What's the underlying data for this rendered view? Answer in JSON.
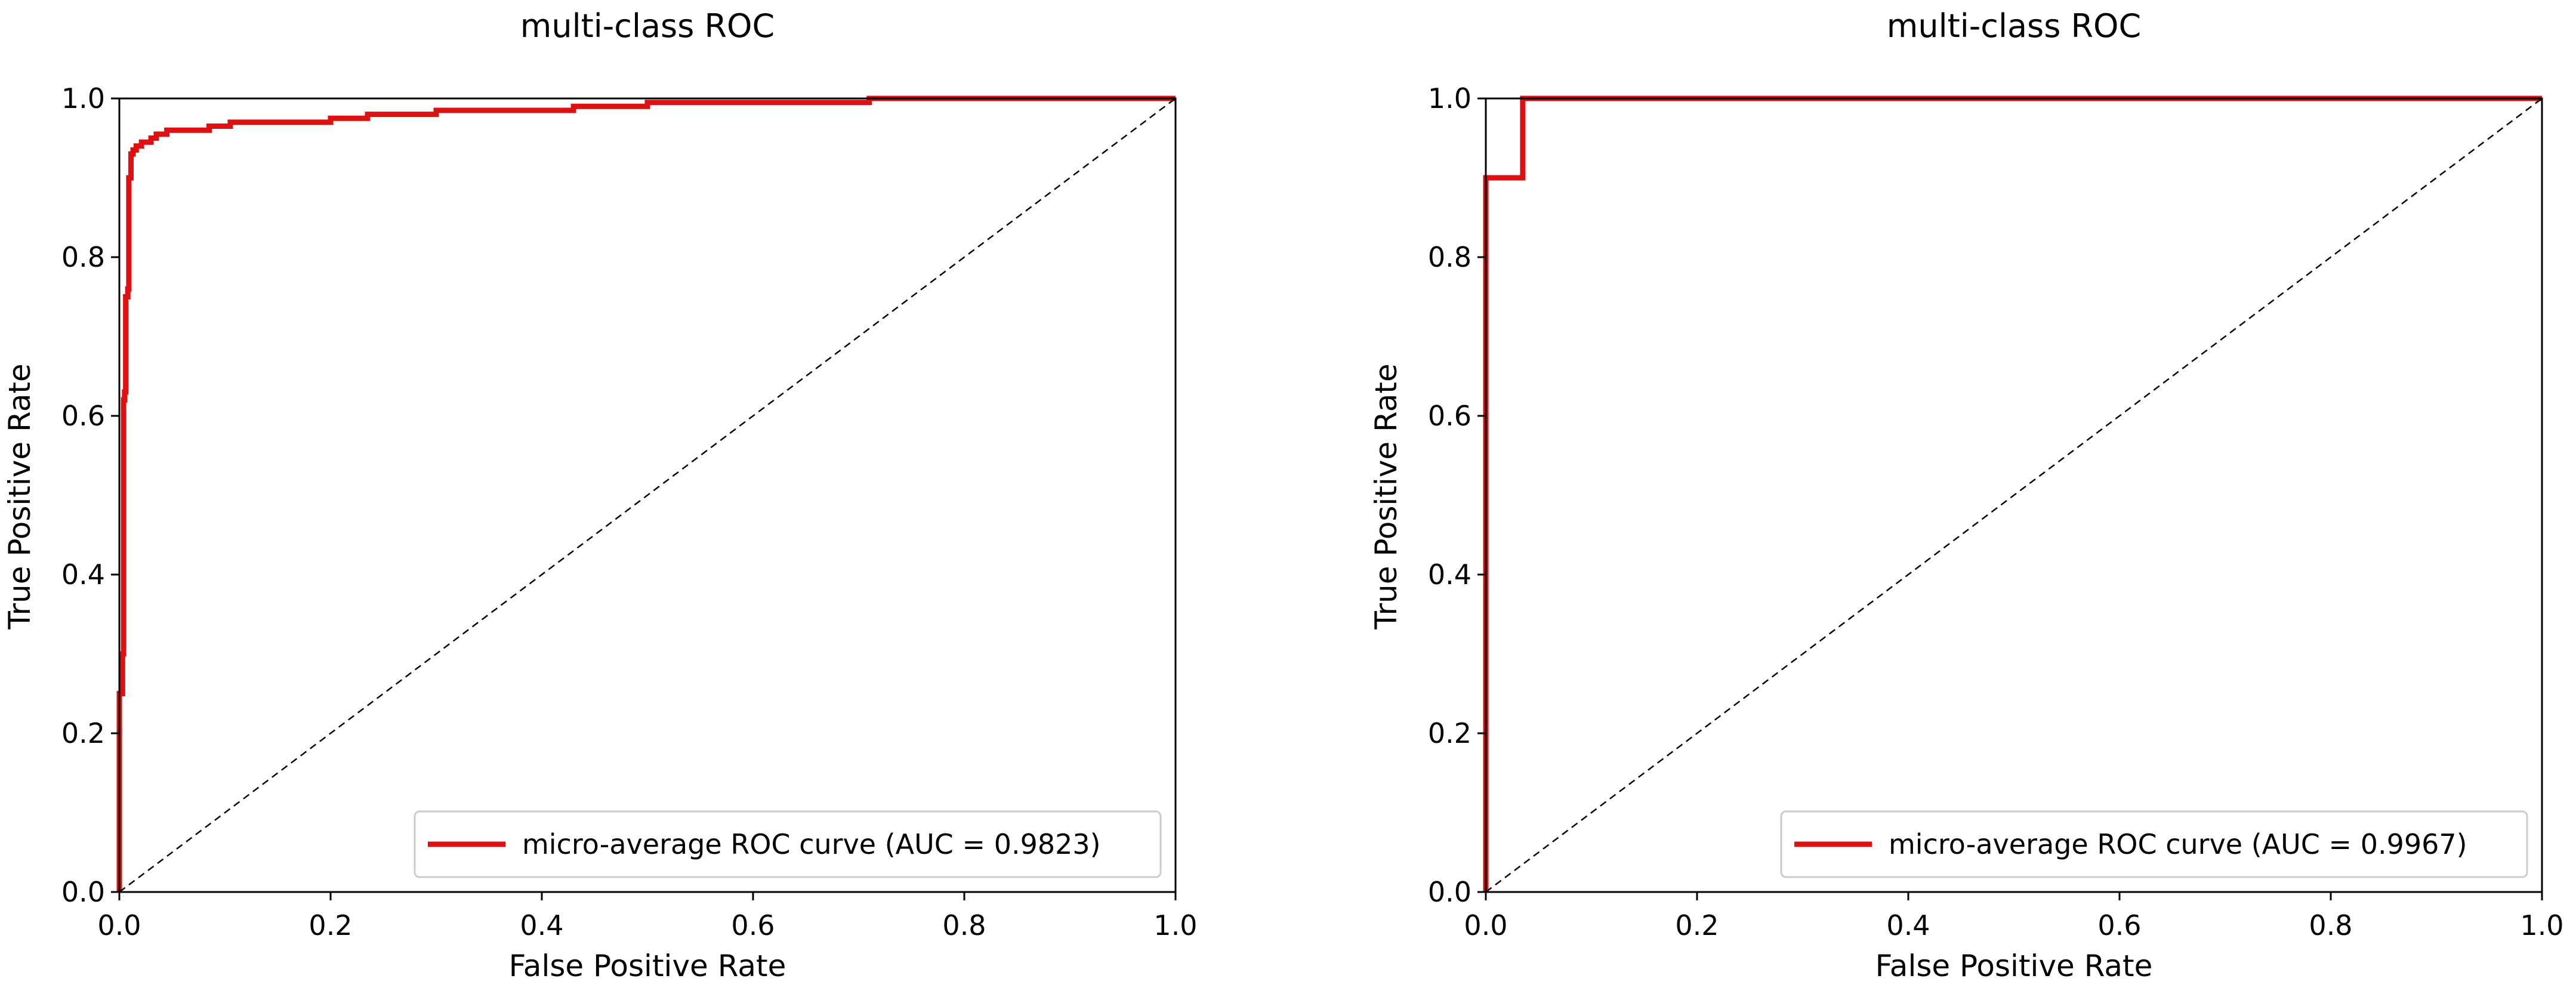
{
  "colors": {
    "curve": "#dd1111",
    "chance_line": "#000000",
    "axes": "#000000",
    "background": "#ffffff"
  },
  "chart_data": [
    {
      "type": "line",
      "title": "multi-class ROC",
      "xlabel": "False Positive Rate",
      "ylabel": "True Positive Rate",
      "xlim": [
        0.0,
        1.0
      ],
      "ylim": [
        0.0,
        1.0
      ],
      "x_ticks": [
        "0.0",
        "0.2",
        "0.4",
        "0.6",
        "0.8",
        "1.0"
      ],
      "y_ticks": [
        "0.0",
        "0.2",
        "0.4",
        "0.6",
        "0.8",
        "1.0"
      ],
      "grid": false,
      "legend_position": "lower-right",
      "series": [
        {
          "name": "micro-average ROC curve (AUC = 0.9823)",
          "color": "#dd1111",
          "style": "solid",
          "x": [
            0.0,
            0.0,
            0.003,
            0.003,
            0.004,
            0.004,
            0.005,
            0.005,
            0.006,
            0.006,
            0.008,
            0.008,
            0.009,
            0.009,
            0.011,
            0.011,
            0.013,
            0.013,
            0.016,
            0.016,
            0.021,
            0.021,
            0.03,
            0.03,
            0.035,
            0.035,
            0.045,
            0.045,
            0.085,
            0.085,
            0.105,
            0.105,
            0.2,
            0.2,
            0.235,
            0.235,
            0.3,
            0.3,
            0.43,
            0.43,
            0.5,
            0.5,
            0.71,
            0.71,
            1.0
          ],
          "y": [
            0.0,
            0.25,
            0.25,
            0.3,
            0.3,
            0.62,
            0.62,
            0.63,
            0.63,
            0.75,
            0.75,
            0.76,
            0.76,
            0.9,
            0.9,
            0.93,
            0.93,
            0.935,
            0.935,
            0.94,
            0.94,
            0.945,
            0.945,
            0.95,
            0.95,
            0.955,
            0.955,
            0.96,
            0.96,
            0.965,
            0.965,
            0.97,
            0.97,
            0.975,
            0.975,
            0.98,
            0.98,
            0.985,
            0.985,
            0.99,
            0.99,
            0.995,
            0.995,
            1.0,
            1.0
          ]
        },
        {
          "name": "",
          "color": "#000000",
          "style": "dashed",
          "x": [
            0.0,
            1.0
          ],
          "y": [
            0.0,
            1.0
          ]
        }
      ]
    },
    {
      "type": "line",
      "title": "multi-class ROC",
      "xlabel": "False Positive Rate",
      "ylabel": "True Positive Rate",
      "xlim": [
        0.0,
        1.0
      ],
      "ylim": [
        0.0,
        1.0
      ],
      "x_ticks": [
        "0.0",
        "0.2",
        "0.4",
        "0.6",
        "0.8",
        "1.0"
      ],
      "y_ticks": [
        "0.0",
        "0.2",
        "0.4",
        "0.6",
        "0.8",
        "1.0"
      ],
      "grid": false,
      "legend_position": "lower-right",
      "series": [
        {
          "name": "micro-average ROC curve (AUC = 0.9967)",
          "color": "#dd1111",
          "style": "solid",
          "x": [
            0.0,
            0.0,
            0.035,
            0.035,
            1.0
          ],
          "y": [
            0.0,
            0.9,
            0.9,
            1.0,
            1.0
          ]
        },
        {
          "name": "",
          "color": "#000000",
          "style": "dashed",
          "x": [
            0.0,
            1.0
          ],
          "y": [
            0.0,
            1.0
          ]
        }
      ]
    }
  ]
}
